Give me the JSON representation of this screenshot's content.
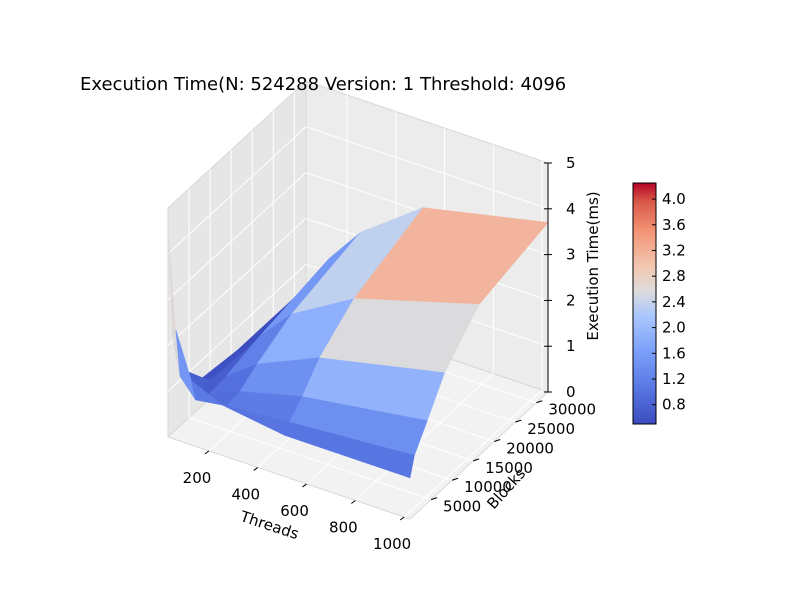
{
  "chart_data": {
    "type": "surface3d",
    "title": "Execution Time(N: 524288 Version: 1 Threshold: 4096",
    "xlabel": "Threads",
    "ylabel": "Blocks",
    "zlabel": "Execution Time(ms)",
    "x_ticks": [
      "200",
      "400",
      "600",
      "800",
      "1000"
    ],
    "y_ticks": [
      "5000",
      "10000",
      "15000",
      "20000",
      "25000",
      "30000"
    ],
    "z_ticks": [
      "0",
      "1",
      "2",
      "3",
      "4",
      "5"
    ],
    "xlim": [
      32,
      1024
    ],
    "ylim": [
      1,
      32768
    ],
    "zlim": [
      0,
      5
    ],
    "colormap": "coolwarm",
    "colorbar": {
      "ticks": [
        "0.8",
        "1.2",
        "1.6",
        "2.0",
        "2.4",
        "2.8",
        "3.2",
        "3.6",
        "4.0"
      ],
      "range": [
        0.5,
        4.25
      ],
      "low_color": "#3b4cc0",
      "high_color": "#b40426"
    },
    "threads": [
      32,
      64,
      128,
      256,
      512,
      1024
    ],
    "blocks": [
      1,
      1024,
      4096,
      8192,
      16384,
      32768
    ],
    "z": [
      [
        4.5,
        2.2,
        1.1,
        0.6,
        0.5,
        0.5
      ],
      [
        2.4,
        1.3,
        0.7,
        0.6,
        0.55,
        0.5
      ],
      [
        1.4,
        0.9,
        0.75,
        0.8,
        1.0,
        1.3
      ],
      [
        1.1,
        1.0,
        1.05,
        1.3,
        1.7,
        2.1
      ],
      [
        0.9,
        1.1,
        1.4,
        1.9,
        2.5,
        3.1
      ],
      [
        0.9,
        1.3,
        1.8,
        2.5,
        3.3,
        3.7
      ]
    ]
  }
}
